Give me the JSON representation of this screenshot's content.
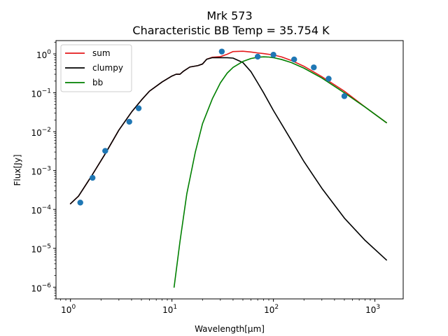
{
  "chart_data": {
    "type": "line",
    "title": "Mrk 573",
    "subtitle": "Characteristic BB Temp = 35.754 K",
    "xlabel": "Wavelength[μm]",
    "ylabel": "Flux[Jy]",
    "xscale": "log",
    "yscale": "log",
    "xlim": [
      0.72,
      1900
    ],
    "ylim": [
      5e-07,
      2.2
    ],
    "xticks": [
      {
        "value": 1,
        "base": "10",
        "exp": "0"
      },
      {
        "value": 10,
        "base": "10",
        "exp": "1"
      },
      {
        "value": 100,
        "base": "10",
        "exp": "2"
      },
      {
        "value": 1000,
        "base": "10",
        "exp": "3"
      }
    ],
    "yticks": [
      {
        "value": 1e-06,
        "base": "10",
        "exp": "−6"
      },
      {
        "value": 1e-05,
        "base": "10",
        "exp": "−5"
      },
      {
        "value": 0.0001,
        "base": "10",
        "exp": "−4"
      },
      {
        "value": 0.001,
        "base": "10",
        "exp": "−3"
      },
      {
        "value": 0.01,
        "base": "10",
        "exp": "−2"
      },
      {
        "value": 0.1,
        "base": "10",
        "exp": "−1"
      },
      {
        "value": 1,
        "base": "10",
        "exp": "0"
      }
    ],
    "grid": false,
    "legend_position": "top-left",
    "series": [
      {
        "name": "sum",
        "color": "#e41a1c",
        "x": [
          1,
          1.2,
          1.6,
          2.2,
          3,
          4,
          5,
          6,
          8,
          10,
          11,
          12,
          13,
          15,
          18,
          20,
          22,
          25,
          30,
          35,
          40,
          50,
          60,
          70,
          80,
          100,
          120,
          150,
          200,
          300,
          500,
          800,
          1300
        ],
        "y": [
          0.00014,
          0.00022,
          0.0007,
          0.0027,
          0.011,
          0.032,
          0.065,
          0.11,
          0.19,
          0.27,
          0.3,
          0.3,
          0.36,
          0.46,
          0.5,
          0.55,
          0.73,
          0.82,
          0.85,
          0.98,
          1.15,
          1.17,
          1.12,
          1.06,
          1.02,
          0.94,
          0.84,
          0.68,
          0.48,
          0.26,
          0.11,
          0.043,
          0.017
        ]
      },
      {
        "name": "clumpy",
        "color": "#000000",
        "x": [
          1,
          1.2,
          1.6,
          2.2,
          3,
          4,
          5,
          6,
          8,
          10,
          11,
          12,
          13,
          15,
          18,
          20,
          22,
          25,
          30,
          35,
          40,
          50,
          60,
          70,
          80,
          100,
          150,
          200,
          300,
          500,
          800,
          1300
        ],
        "y": [
          0.00014,
          0.00022,
          0.0007,
          0.0027,
          0.011,
          0.032,
          0.065,
          0.11,
          0.19,
          0.27,
          0.3,
          0.3,
          0.36,
          0.46,
          0.5,
          0.55,
          0.73,
          0.8,
          0.8,
          0.8,
          0.78,
          0.6,
          0.35,
          0.18,
          0.1,
          0.035,
          0.006,
          0.0017,
          0.00035,
          6e-05,
          1.6e-05,
          5e-06
        ]
      },
      {
        "name": "bb",
        "color": "#008000",
        "x": [
          10.5,
          12,
          14,
          17,
          20,
          25,
          30,
          35,
          40,
          50,
          60,
          70,
          80,
          90,
          100,
          120,
          150,
          200,
          300,
          500,
          800,
          1300
        ],
        "y": [
          1e-06,
          1.5e-05,
          0.00025,
          0.003,
          0.016,
          0.07,
          0.18,
          0.32,
          0.45,
          0.64,
          0.76,
          0.82,
          0.84,
          0.83,
          0.8,
          0.72,
          0.6,
          0.43,
          0.24,
          0.1,
          0.043,
          0.017
        ]
      }
    ],
    "points": {
      "color": "#1f77b4",
      "x": [
        1.25,
        1.65,
        2.2,
        3.8,
        4.7,
        31,
        70,
        100,
        160,
        250,
        350,
        500
      ],
      "y": [
        0.00015,
        0.00065,
        0.0032,
        0.018,
        0.04,
        1.15,
        0.85,
        0.95,
        0.72,
        0.45,
        0.23,
        0.082
      ]
    }
  }
}
